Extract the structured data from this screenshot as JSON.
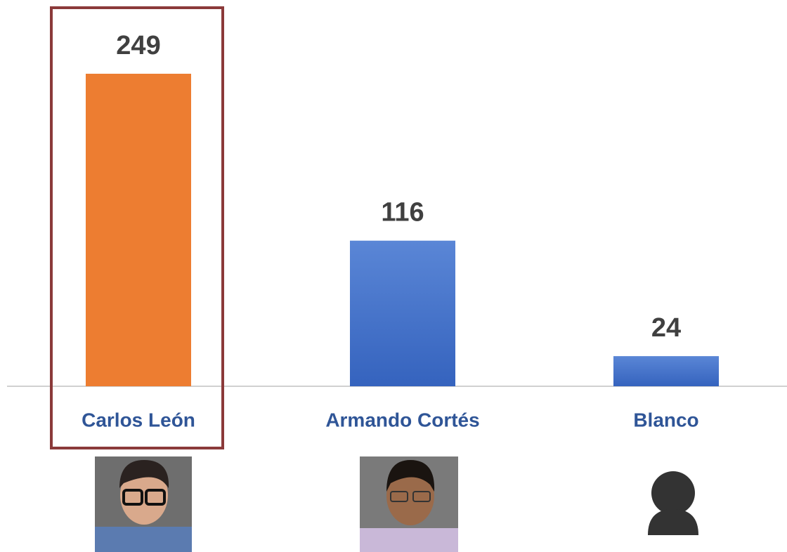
{
  "chart_data": {
    "type": "bar",
    "categories": [
      "Carlos León",
      "Armando Cortés",
      "Blanco"
    ],
    "values": [
      249,
      116,
      24
    ],
    "colors": [
      "#ED7D31",
      "#4472C4",
      "#4472C4"
    ]
  }
}
